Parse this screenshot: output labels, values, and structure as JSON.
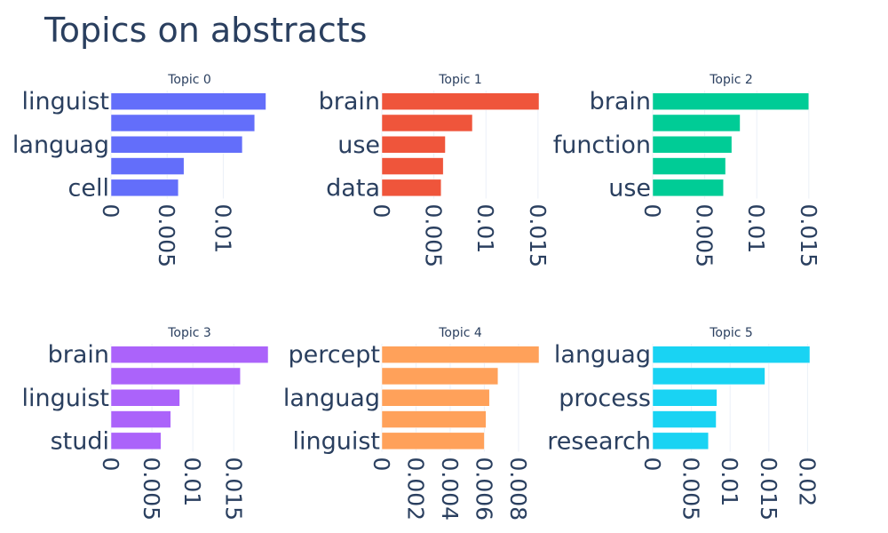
{
  "title": "Topics on abstracts",
  "chart_data": [
    {
      "type": "bar",
      "orientation": "horizontal",
      "title": "Topic 0",
      "color": "#636efa",
      "categories": [
        "linguist",
        "",
        "languag",
        "",
        "cell"
      ],
      "values": [
        0.0138,
        0.0128,
        0.0117,
        0.0065,
        0.006
      ],
      "xlim": [
        0,
        0.014
      ],
      "xticks": [
        0,
        0.005,
        0.01
      ],
      "xtick_labels": [
        "0",
        "0.005",
        "0.01"
      ]
    },
    {
      "type": "bar",
      "orientation": "horizontal",
      "title": "Topic 1",
      "color": "#ef553b",
      "categories": [
        "brain",
        "",
        "use",
        "",
        "data"
      ],
      "values": [
        0.0151,
        0.0087,
        0.0061,
        0.0059,
        0.0057
      ],
      "xlim": [
        0,
        0.0151
      ],
      "xticks": [
        0,
        0.005,
        0.01,
        0.015
      ],
      "xtick_labels": [
        "0",
        "0.005",
        "0.01",
        "0.015"
      ]
    },
    {
      "type": "bar",
      "orientation": "horizontal",
      "title": "Topic 2",
      "color": "#00cc96",
      "categories": [
        "brain",
        "",
        "function",
        "",
        "use"
      ],
      "values": [
        0.015,
        0.0084,
        0.0076,
        0.007,
        0.0068
      ],
      "xlim": [
        0,
        0.0151
      ],
      "xticks": [
        0,
        0.005,
        0.01,
        0.015
      ],
      "xtick_labels": [
        "0",
        "0.005",
        "0.01",
        "0.015"
      ]
    },
    {
      "type": "bar",
      "orientation": "horizontal",
      "title": "Topic 3",
      "color": "#ab63fa",
      "categories": [
        "brain",
        "",
        "linguist",
        "",
        "studi"
      ],
      "values": [
        0.0192,
        0.0158,
        0.0084,
        0.0073,
        0.0061
      ],
      "xlim": [
        0,
        0.0192
      ],
      "xticks": [
        0,
        0.005,
        0.01,
        0.015
      ],
      "xtick_labels": [
        "0",
        "0.005",
        "0.01",
        "0.015"
      ]
    },
    {
      "type": "bar",
      "orientation": "horizontal",
      "title": "Topic 4",
      "color": "#ffa15a",
      "categories": [
        "percept",
        "",
        "languag",
        "",
        "linguist"
      ],
      "values": [
        0.0092,
        0.0068,
        0.0063,
        0.0061,
        0.006
      ],
      "xlim": [
        0,
        0.0092
      ],
      "xticks": [
        0,
        0.002,
        0.004,
        0.006,
        0.008
      ],
      "xtick_labels": [
        "0",
        "0.002",
        "0.004",
        "0.006",
        "0.008"
      ]
    },
    {
      "type": "bar",
      "orientation": "horizontal",
      "title": "Topic 5",
      "color": "#19d3f3",
      "categories": [
        "languag",
        "",
        "process",
        "",
        "research"
      ],
      "values": [
        0.0203,
        0.0145,
        0.0083,
        0.0082,
        0.0072
      ],
      "xlim": [
        0,
        0.0203
      ],
      "xticks": [
        0,
        0.005,
        0.01,
        0.015,
        0.02
      ],
      "xtick_labels": [
        "0",
        "0.005",
        "0.01",
        "0.015",
        "0.02"
      ]
    }
  ]
}
